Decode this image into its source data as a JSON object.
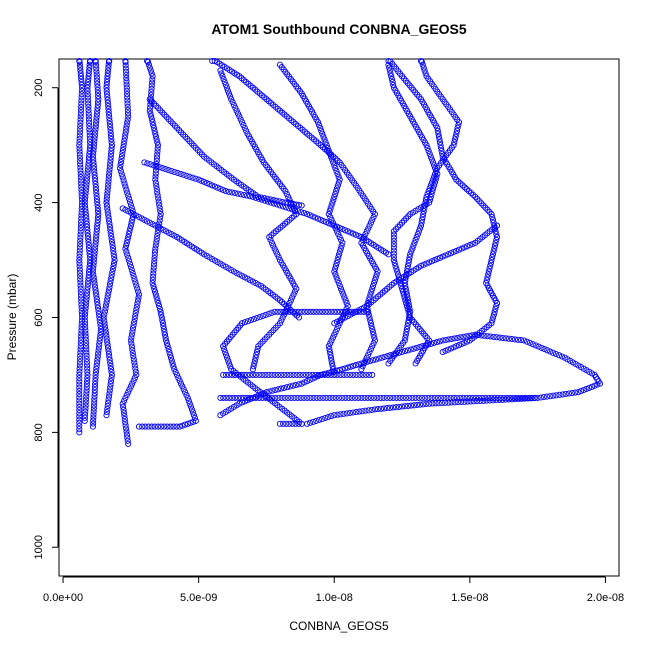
{
  "chart_data": {
    "type": "scatter",
    "title": "ATOM1 Southbound CONBNA_GEOS5",
    "xlabel": "CONBNA_GEOS5",
    "ylabel": "Pressure (mbar)",
    "xlim": [
      -1.5e-10,
      2.05e-08
    ],
    "ylim": [
      1050,
      150
    ],
    "y_reversed": true,
    "grid": false,
    "legend": "none",
    "x_ticks": [
      {
        "value": 0,
        "label": "0.0e+00"
      },
      {
        "value": 5e-09,
        "label": "5.0e-09"
      },
      {
        "value": 1e-08,
        "label": "1.0e-08"
      },
      {
        "value": 1.5e-08,
        "label": "1.5e-08"
      },
      {
        "value": 2e-08,
        "label": "2.0e-08"
      }
    ],
    "y_ticks": [
      {
        "value": 200,
        "label": "200"
      },
      {
        "value": 400,
        "label": "400"
      },
      {
        "value": 600,
        "label": "600"
      },
      {
        "value": 800,
        "label": "800"
      },
      {
        "value": 1000,
        "label": "1000"
      }
    ],
    "series": [
      {
        "color": "#0000ff",
        "points": [
          [
            6e-10,
            800
          ],
          [
            6e-10,
            700
          ],
          [
            7e-10,
            600
          ],
          [
            6e-10,
            500
          ],
          [
            7e-10,
            400
          ],
          [
            6e-10,
            300
          ],
          [
            7e-10,
            200
          ],
          [
            6e-10,
            150
          ]
        ]
      },
      {
        "color": "#0000ff",
        "points": [
          [
            8e-10,
            780
          ],
          [
            9e-10,
            700
          ],
          [
            8e-10,
            600
          ],
          [
            1e-09,
            500
          ],
          [
            8e-10,
            400
          ],
          [
            1e-09,
            300
          ],
          [
            9e-10,
            200
          ],
          [
            1e-09,
            150
          ]
        ]
      },
      {
        "color": "#0000ff",
        "points": [
          [
            1.1e-09,
            790
          ],
          [
            1.2e-09,
            700
          ],
          [
            1.4e-09,
            620
          ],
          [
            1.1e-09,
            520
          ],
          [
            1.3e-09,
            420
          ],
          [
            1.1e-09,
            320
          ],
          [
            1.3e-09,
            220
          ],
          [
            1.2e-09,
            150
          ]
        ]
      },
      {
        "color": "#0000ff",
        "points": [
          [
            1.6e-09,
            770
          ],
          [
            1.8e-09,
            700
          ],
          [
            1.5e-09,
            600
          ],
          [
            1.9e-09,
            500
          ],
          [
            1.6e-09,
            400
          ],
          [
            1.8e-09,
            300
          ],
          [
            1.6e-09,
            200
          ],
          [
            1.7e-09,
            150
          ]
        ]
      },
      {
        "color": "#0000ff",
        "points": [
          [
            2.4e-09,
            820
          ],
          [
            2.2e-09,
            750
          ],
          [
            2.7e-09,
            700
          ],
          [
            2.5e-09,
            640
          ],
          [
            2.8e-09,
            560
          ],
          [
            2.3e-09,
            480
          ],
          [
            2.6e-09,
            420
          ],
          [
            2.1e-09,
            340
          ],
          [
            2.4e-09,
            250
          ],
          [
            2.3e-09,
            150
          ]
        ]
      },
      {
        "color": "#0000ff",
        "points": [
          [
            2.8e-09,
            790
          ],
          [
            3.5e-09,
            790
          ],
          [
            4.3e-09,
            790
          ],
          [
            4.9e-09,
            780
          ],
          [
            4.6e-09,
            740
          ],
          [
            4.1e-09,
            690
          ],
          [
            3.8e-09,
            640
          ],
          [
            3.6e-09,
            590
          ],
          [
            3.3e-09,
            540
          ],
          [
            3.4e-09,
            480
          ],
          [
            3.6e-09,
            420
          ],
          [
            3.4e-09,
            360
          ],
          [
            3.5e-09,
            300
          ],
          [
            3.2e-09,
            240
          ],
          [
            3.3e-09,
            180
          ],
          [
            3.1e-09,
            150
          ]
        ]
      },
      {
        "color": "#0000ff",
        "points": [
          [
            2.2e-09,
            410
          ],
          [
            3e-09,
            430
          ],
          [
            4.2e-09,
            460
          ],
          [
            5.2e-09,
            490
          ],
          [
            6.3e-09,
            520
          ],
          [
            7.3e-09,
            545
          ],
          [
            8e-09,
            570
          ],
          [
            8.7e-09,
            600
          ]
        ]
      },
      {
        "color": "#0000ff",
        "points": [
          [
            3.2e-09,
            220
          ],
          [
            4.2e-09,
            270
          ],
          [
            5.2e-09,
            320
          ],
          [
            6.3e-09,
            360
          ],
          [
            7.2e-09,
            390
          ],
          [
            8.2e-09,
            400
          ],
          [
            8.8e-09,
            405
          ]
        ]
      },
      {
        "color": "#0000ff",
        "points": [
          [
            3e-09,
            330
          ],
          [
            4e-09,
            345
          ],
          [
            5e-09,
            360
          ],
          [
            6e-09,
            380
          ],
          [
            7e-09,
            390
          ],
          [
            8e-09,
            405
          ],
          [
            9e-09,
            420
          ],
          [
            1e-08,
            440
          ],
          [
            1.1e-08,
            460
          ],
          [
            1.2e-08,
            490
          ]
        ]
      },
      {
        "color": "#0000ff",
        "points": [
          [
            5.8e-09,
            770
          ],
          [
            6.5e-09,
            750
          ],
          [
            7.5e-09,
            730
          ],
          [
            8.8e-09,
            715
          ],
          [
            9.5e-09,
            700
          ],
          [
            1.03e-08,
            690
          ],
          [
            1.1e-08,
            680
          ],
          [
            1.25e-08,
            660
          ],
          [
            1.4e-08,
            640
          ],
          [
            1.52e-08,
            630
          ],
          [
            1.7e-08,
            640
          ],
          [
            1.85e-08,
            670
          ],
          [
            1.96e-08,
            700
          ],
          [
            1.98e-08,
            715
          ],
          [
            1.9e-08,
            730
          ],
          [
            1.75e-08,
            740
          ],
          [
            1.55e-08,
            745
          ],
          [
            1.35e-08,
            750
          ],
          [
            1.15e-08,
            760
          ],
          [
            1e-08,
            770
          ],
          [
            9e-09,
            785
          ]
        ]
      },
      {
        "color": "#0000ff",
        "points": [
          [
            5.8e-09,
            740
          ],
          [
            7e-09,
            740
          ],
          [
            9e-09,
            740
          ],
          [
            1.1e-08,
            740
          ],
          [
            1.3e-08,
            740
          ],
          [
            1.5e-08,
            740
          ],
          [
            1.74e-08,
            740
          ]
        ]
      },
      {
        "color": "#0000ff",
        "points": [
          [
            5.9e-09,
            700
          ],
          [
            7e-09,
            700
          ],
          [
            8.5e-09,
            700
          ],
          [
            1e-08,
            700
          ],
          [
            1.14e-08,
            700
          ]
        ]
      },
      {
        "color": "#0000ff",
        "points": [
          [
            8e-09,
            785
          ],
          [
            8.8e-09,
            785
          ],
          [
            7e-09,
            720
          ],
          [
            6.2e-09,
            690
          ],
          [
            5.9e-09,
            650
          ],
          [
            6.6e-09,
            610
          ],
          [
            7.8e-09,
            590
          ],
          [
            8.8e-09,
            590
          ],
          [
            1e-08,
            590
          ],
          [
            1.12e-08,
            590
          ]
        ]
      },
      {
        "color": "#0000ff",
        "points": [
          [
            7e-09,
            690
          ],
          [
            7.2e-09,
            650
          ],
          [
            8e-09,
            610
          ],
          [
            8.6e-09,
            550
          ],
          [
            8e-09,
            500
          ],
          [
            7.6e-09,
            460
          ],
          [
            8.6e-09,
            420
          ],
          [
            8.2e-09,
            380
          ],
          [
            7.4e-09,
            330
          ],
          [
            6.8e-09,
            280
          ],
          [
            6.2e-09,
            220
          ],
          [
            5.8e-09,
            170
          ]
        ]
      },
      {
        "color": "#0000ff",
        "points": [
          [
            1e-08,
            700
          ],
          [
            9.8e-09,
            650
          ],
          [
            1.05e-08,
            580
          ],
          [
            1e-08,
            520
          ],
          [
            1.03e-08,
            470
          ],
          [
            9.8e-09,
            420
          ],
          [
            1.02e-08,
            360
          ],
          [
            9.8e-09,
            310
          ],
          [
            9.4e-09,
            260
          ],
          [
            8.8e-09,
            210
          ],
          [
            8e-09,
            160
          ]
        ]
      },
      {
        "color": "#0000ff",
        "points": [
          [
            1.1e-08,
            690
          ],
          [
            1.15e-08,
            640
          ],
          [
            1.12e-08,
            580
          ],
          [
            1.16e-08,
            520
          ],
          [
            1.1e-08,
            470
          ],
          [
            1.15e-08,
            420
          ],
          [
            1.08e-08,
            370
          ],
          [
            1.02e-08,
            330
          ],
          [
            9.5e-09,
            300
          ],
          [
            8.5e-09,
            260
          ],
          [
            7.5e-09,
            220
          ],
          [
            6.5e-09,
            180
          ],
          [
            5.5e-09,
            150
          ]
        ]
      },
      {
        "color": "#0000ff",
        "points": [
          [
            1.2e-08,
            680
          ],
          [
            1.26e-08,
            640
          ],
          [
            1.28e-08,
            590
          ],
          [
            1.26e-08,
            540
          ],
          [
            1.28e-08,
            490
          ],
          [
            1.32e-08,
            440
          ],
          [
            1.34e-08,
            390
          ],
          [
            1.38e-08,
            340
          ],
          [
            1.44e-08,
            300
          ],
          [
            1.46e-08,
            260
          ],
          [
            1.4e-08,
            220
          ],
          [
            1.34e-08,
            180
          ],
          [
            1.32e-08,
            150
          ]
        ]
      },
      {
        "color": "#0000ff",
        "points": [
          [
            1.3e-08,
            680
          ],
          [
            1.35e-08,
            640
          ],
          [
            1.28e-08,
            600
          ],
          [
            1.25e-08,
            550
          ],
          [
            1.22e-08,
            500
          ],
          [
            1.22e-08,
            450
          ],
          [
            1.28e-08,
            420
          ],
          [
            1.35e-08,
            400
          ],
          [
            1.38e-08,
            350
          ],
          [
            1.34e-08,
            300
          ],
          [
            1.28e-08,
            250
          ],
          [
            1.22e-08,
            200
          ],
          [
            1.2e-08,
            160
          ]
        ]
      },
      {
        "color": "#0000ff",
        "points": [
          [
            1.4e-08,
            660
          ],
          [
            1.5e-08,
            640
          ],
          [
            1.58e-08,
            610
          ],
          [
            1.6e-08,
            575
          ],
          [
            1.56e-08,
            540
          ],
          [
            1.58e-08,
            500
          ],
          [
            1.6e-08,
            460
          ],
          [
            1.58e-08,
            420
          ],
          [
            1.52e-08,
            390
          ],
          [
            1.45e-08,
            360
          ],
          [
            1.4e-08,
            320
          ],
          [
            1.38e-08,
            270
          ],
          [
            1.32e-08,
            220
          ],
          [
            1.25e-08,
            180
          ],
          [
            1.2e-08,
            150
          ]
        ]
      },
      {
        "color": "#0000ff",
        "points": [
          [
            1e-08,
            610
          ],
          [
            1.12e-08,
            580
          ],
          [
            1.22e-08,
            540
          ],
          [
            1.32e-08,
            510
          ],
          [
            1.42e-08,
            490
          ],
          [
            1.52e-08,
            470
          ],
          [
            1.6e-08,
            440
          ]
        ]
      }
    ]
  }
}
